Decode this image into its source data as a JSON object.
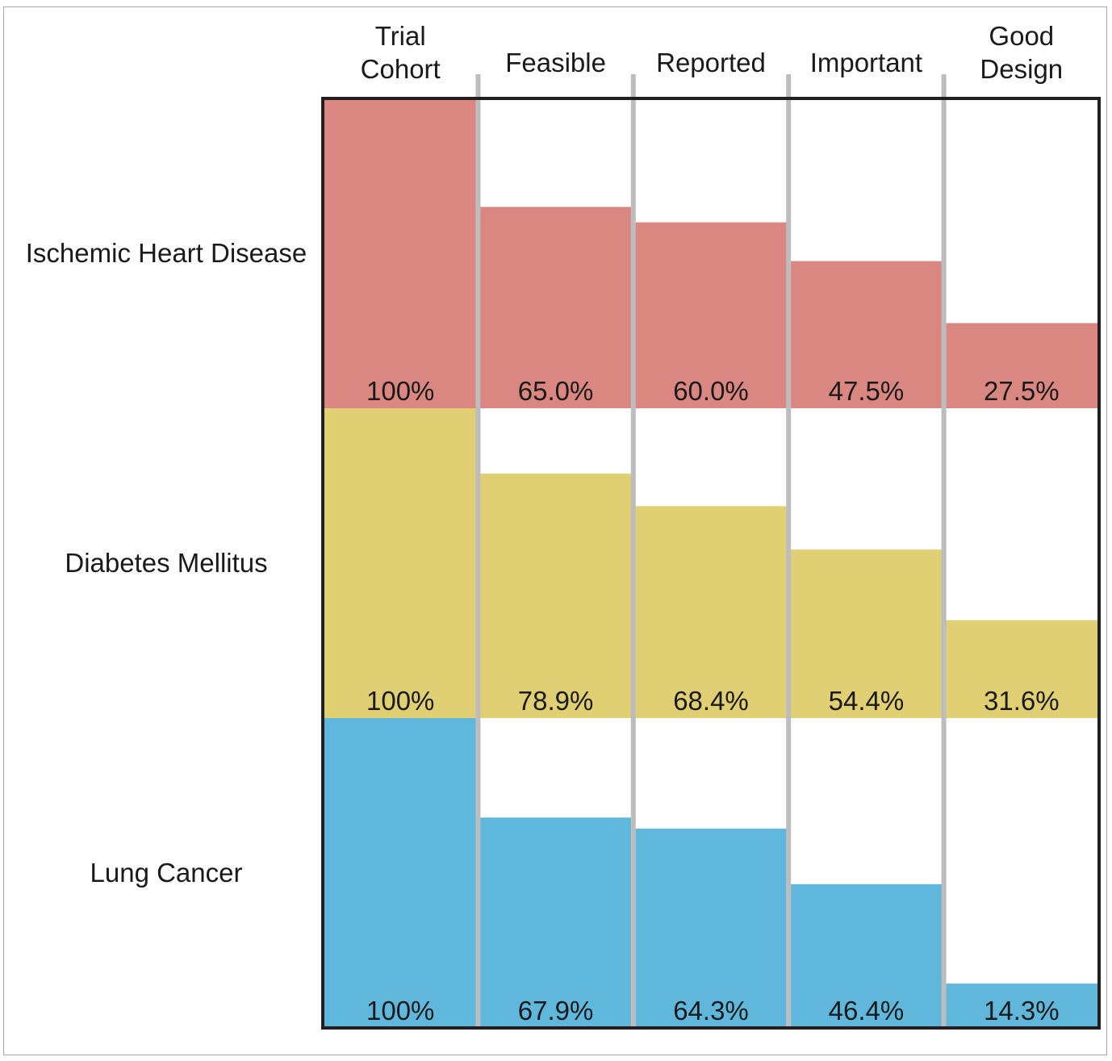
{
  "chart_data": {
    "type": "bar",
    "title": "",
    "xlabel": "",
    "ylabel": "",
    "ylim": [
      0,
      100
    ],
    "categories": [
      [
        "Trial",
        "Cohort"
      ],
      [
        "Feasible"
      ],
      [
        "Reported"
      ],
      [
        "Important"
      ],
      [
        "Good",
        "Design"
      ]
    ],
    "series": [
      {
        "name": "Ischemic Heart Disease",
        "color": "#db8781",
        "values": [
          100,
          65.0,
          60.0,
          47.5,
          27.5
        ],
        "labels": [
          "100%",
          "65.0%",
          "60.0%",
          "47.5%",
          "27.5%"
        ]
      },
      {
        "name": "Diabetes Mellitus",
        "color": "#e0cf73",
        "values": [
          100,
          78.9,
          68.4,
          54.4,
          31.6
        ],
        "labels": [
          "100%",
          "78.9%",
          "68.4%",
          "54.4%",
          "31.6%"
        ]
      },
      {
        "name": "Lung Cancer",
        "color": "#5fb8dc",
        "values": [
          100,
          67.9,
          64.3,
          46.4,
          14.3
        ],
        "labels": [
          "100%",
          "67.9%",
          "64.3%",
          "46.4%",
          "14.3%"
        ]
      }
    ],
    "divider_color": "#bdbdbf",
    "border_color": "#231f20"
  }
}
